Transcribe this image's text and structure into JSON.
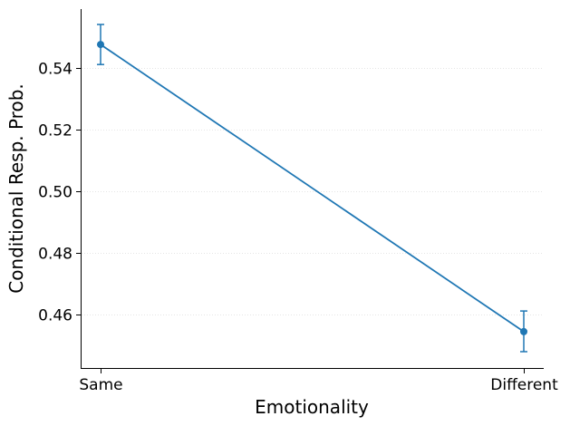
{
  "chart_data": {
    "type": "line",
    "title": "",
    "xlabel": "Emotionality",
    "ylabel": "Conditional Resp. Prob.",
    "categories": [
      "Same",
      "Different"
    ],
    "series": [
      {
        "values": [
          0.5475,
          0.4543
        ],
        "error_low": [
          0.541,
          0.4478
        ],
        "error_high": [
          0.554,
          0.461
        ],
        "color": "#1f77b4"
      }
    ],
    "ylim": [
      0.4425,
      0.559
    ],
    "yticks": [
      0.46,
      0.48,
      0.5,
      0.52,
      0.54
    ],
    "ytick_labels": [
      "0.46",
      "0.48",
      "0.50",
      "0.52",
      "0.54"
    ],
    "grid": "horizontal-dotted",
    "legend": "none"
  }
}
